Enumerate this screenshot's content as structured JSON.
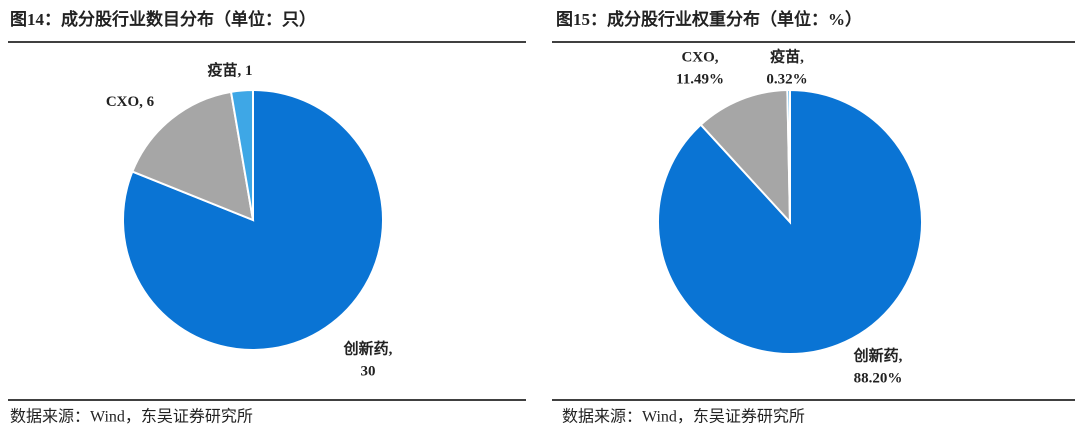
{
  "chart_data": [
    {
      "type": "pie",
      "title": "图14：成分股行业数目分布（单位：只）",
      "categories": [
        "创新药,",
        "CXO,",
        "疫苗,"
      ],
      "values": [
        30,
        6,
        1
      ],
      "colors": [
        "#0a74d4",
        "#a6a6a6",
        "#3ea7e6"
      ],
      "source": "数据来源：Wind，东吴证券研究所"
    },
    {
      "type": "pie",
      "title": "图15：成分股行业权重分布（单位：%）",
      "categories": [
        "创新药,",
        "CXO,",
        "疫苗,"
      ],
      "values": [
        88.2,
        11.49,
        0.32
      ],
      "value_labels": [
        "88.20%",
        "11.49%",
        "0.32%"
      ],
      "colors": [
        "#0a74d4",
        "#a6a6a6",
        "#3ea7e6"
      ],
      "source": "数据来源：Wind，东吴证券研究所"
    }
  ]
}
